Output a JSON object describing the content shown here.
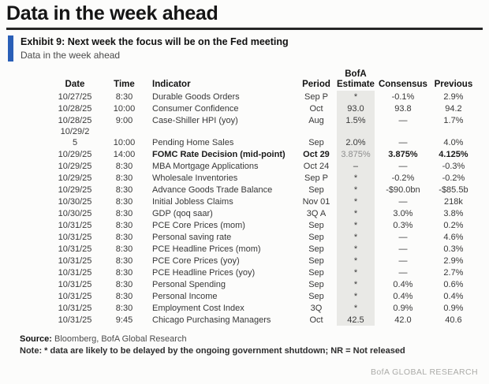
{
  "page": {
    "title": "Data in the week ahead",
    "exhibit_title": "Exhibit 9: Next week the focus will be on the Fed meeting",
    "exhibit_subtitle": "Data in the week ahead",
    "source_label": "Source:",
    "source_text": " Bloomberg, BofA Global Research",
    "note_text": "Note: * data are likely to be delayed by the ongoing government shutdown; NR = Not released",
    "brand": "BofA GLOBAL RESEARCH"
  },
  "colors": {
    "accent_blue": "#2a5fb7",
    "estimate_band": "#e9e9e6",
    "brand_gray": "#ababa8"
  },
  "table": {
    "column_keys": [
      "date",
      "time",
      "indicator",
      "period",
      "estimate",
      "consensus",
      "previous"
    ],
    "headers": {
      "date": "Date",
      "time": "Time",
      "indicator": "Indicator",
      "period": "Period",
      "estimate_top": "BofA",
      "estimate": "Estimate",
      "consensus": "Consensus",
      "previous": "Previous"
    },
    "rows": [
      {
        "date": "10/27/25",
        "time": "8:30",
        "indicator": "Durable Goods Orders",
        "period": "Sep P",
        "estimate": "*",
        "consensus": "-0.1%",
        "previous": "2.9%"
      },
      {
        "date": "10/28/25",
        "time": "10:00",
        "indicator": "Consumer Confidence",
        "period": "Oct",
        "estimate": "93.0",
        "consensus": "93.8",
        "previous": "94.2"
      },
      {
        "date": "10/28/25",
        "time": "9:00",
        "indicator": "Case-Shiller HPI (yoy)",
        "period": "Aug",
        "estimate": "1.5%",
        "consensus": "—",
        "previous": "1.7%"
      },
      {
        "date": "10/29/2\n5",
        "time": "10:00",
        "indicator": "Pending Home Sales",
        "period": "Sep",
        "estimate": "2.0%",
        "consensus": "—",
        "previous": "4.0%"
      },
      {
        "date": "10/29/25",
        "time": "14:00",
        "indicator": "FOMC Rate Decision (mid-point)",
        "period": "Oct 29",
        "estimate": "3.875%",
        "consensus": "3.875%",
        "previous": "4.125%",
        "emphasis": true
      },
      {
        "date": "10/29/25",
        "time": "8:30",
        "indicator": "MBA Mortgage Applications",
        "period": "Oct 24",
        "estimate": "–",
        "consensus": "—",
        "previous": "-0.3%"
      },
      {
        "date": "10/29/25",
        "time": "8:30",
        "indicator": "Wholesale Inventories",
        "period": "Sep P",
        "estimate": "*",
        "consensus": "-0.2%",
        "previous": "-0.2%"
      },
      {
        "date": "10/29/25",
        "time": "8:30",
        "indicator": "Advance Goods Trade Balance",
        "period": "Sep",
        "estimate": "*",
        "consensus": "-$90.0bn",
        "previous": "-$85.5b"
      },
      {
        "date": "10/30/25",
        "time": "8:30",
        "indicator": "Initial Jobless Claims",
        "period": "Nov 01",
        "estimate": "*",
        "consensus": "—",
        "previous": "218k"
      },
      {
        "date": "10/30/25",
        "time": "8:30",
        "indicator": "GDP (qoq saar)",
        "period": "3Q A",
        "estimate": "*",
        "consensus": "3.0%",
        "previous": "3.8%"
      },
      {
        "date": "10/31/25",
        "time": "8:30",
        "indicator": "PCE Core Prices (mom)",
        "period": "Sep",
        "estimate": "*",
        "consensus": "0.3%",
        "previous": "0.2%"
      },
      {
        "date": "10/31/25",
        "time": "8:30",
        "indicator": "Personal saving rate",
        "period": "Sep",
        "estimate": "*",
        "consensus": "—",
        "previous": "4.6%"
      },
      {
        "date": "10/31/25",
        "time": "8:30",
        "indicator": "PCE Headline Prices (mom)",
        "period": "Sep",
        "estimate": "*",
        "consensus": "—",
        "previous": "0.3%"
      },
      {
        "date": "10/31/25",
        "time": "8:30",
        "indicator": "PCE Core Prices (yoy)",
        "period": "Sep",
        "estimate": "*",
        "consensus": "—",
        "previous": "2.9%"
      },
      {
        "date": "10/31/25",
        "time": "8:30",
        "indicator": "PCE Headline Prices (yoy)",
        "period": "Sep",
        "estimate": "*",
        "consensus": "—",
        "previous": "2.7%"
      },
      {
        "date": "10/31/25",
        "time": "8:30",
        "indicator": "Personal Spending",
        "period": "Sep",
        "estimate": "*",
        "consensus": "0.4%",
        "previous": "0.6%"
      },
      {
        "date": "10/31/25",
        "time": "8:30",
        "indicator": "Personal Income",
        "period": "Sep",
        "estimate": "*",
        "consensus": "0.4%",
        "previous": "0.4%"
      },
      {
        "date": "10/31/25",
        "time": "8:30",
        "indicator": "Employment Cost Index",
        "period": "3Q",
        "estimate": "*",
        "consensus": "0.9%",
        "previous": "0.9%"
      },
      {
        "date": "10/31/25",
        "time": "9:45",
        "indicator": "Chicago Purchasing Managers",
        "period": "Oct",
        "estimate": "42.5",
        "consensus": "42.0",
        "previous": "40.6"
      }
    ]
  }
}
